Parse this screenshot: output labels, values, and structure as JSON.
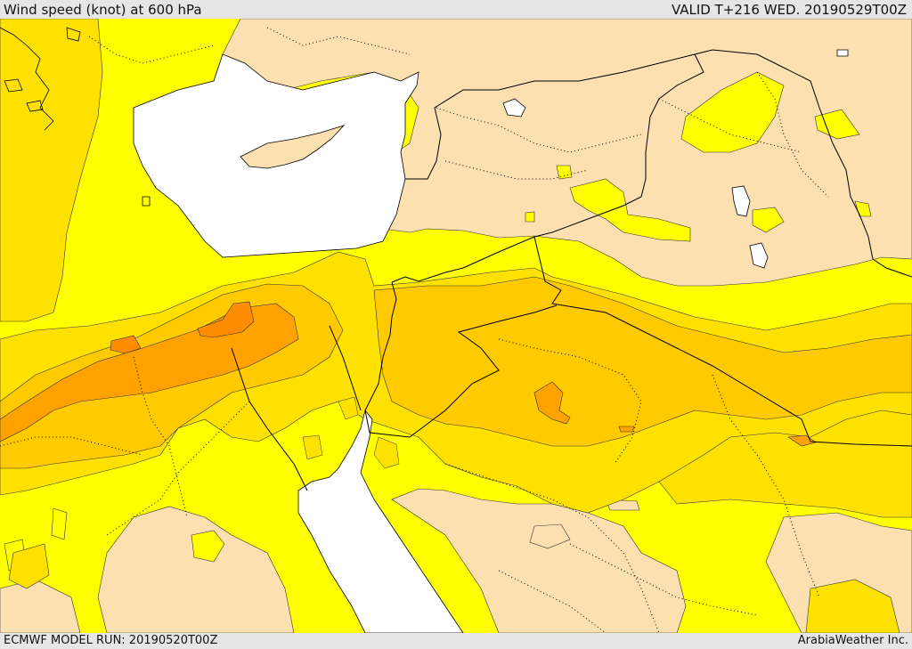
{
  "header": {
    "title": "Wind speed (knot) at 600 hPa",
    "valid": "VALID T+216 WED. 20190529T00Z"
  },
  "footer": {
    "model_run": "ECMWF MODEL RUN: 20190520T00Z",
    "credit": "ArabiaWeather Inc."
  },
  "colors": {
    "background": "#e6e6e6",
    "water": "#ffffff",
    "calm": "#fde0b0",
    "band_1": "#ffff00",
    "band_2": "#ffe100",
    "band_3": "#ffca00",
    "band_4": "#ffa200",
    "band_5": "#ff8c00",
    "border": "#000000"
  }
}
